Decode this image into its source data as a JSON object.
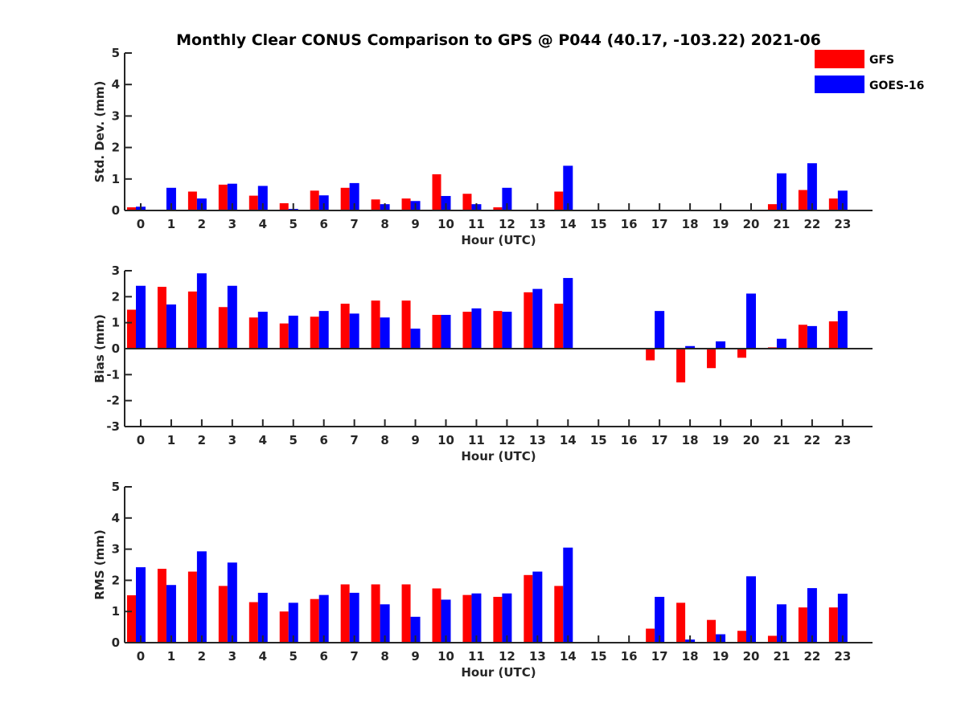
{
  "chart_data": {
    "type": "bar",
    "title": "Monthly Clear CONUS Comparison to GPS @ P044 (40.17, -103.22) 2021-06",
    "legend": {
      "placement": "top-right",
      "entries": [
        "GFS",
        "GOES-16"
      ]
    },
    "colors": {
      "GFS": "#ff0000",
      "GOES-16": "#0000ff"
    },
    "categories": [
      "0",
      "1",
      "2",
      "3",
      "4",
      "5",
      "6",
      "7",
      "8",
      "9",
      "10",
      "11",
      "12",
      "13",
      "14",
      "15",
      "16",
      "17",
      "18",
      "19",
      "20",
      "21",
      "22",
      "23"
    ],
    "panels": [
      {
        "ylabel": "Std. Dev. (mm)",
        "xlabel": "Hour (UTC)",
        "ylim": [
          0,
          5
        ],
        "yticks": [
          0,
          1,
          2,
          3,
          4,
          5
        ],
        "series": [
          {
            "name": "GFS",
            "values": [
              0.1,
              null,
              0.6,
              0.82,
              0.47,
              0.23,
              0.63,
              0.72,
              0.35,
              0.38,
              1.15,
              0.53,
              0.1,
              null,
              0.6,
              null,
              null,
              null,
              null,
              null,
              null,
              0.2,
              0.65,
              0.38
            ]
          },
          {
            "name": "GOES-16",
            "values": [
              0.12,
              0.72,
              0.38,
              0.85,
              0.78,
              0.05,
              0.48,
              0.87,
              0.2,
              0.3,
              0.46,
              0.2,
              0.72,
              null,
              1.42,
              null,
              null,
              null,
              null,
              null,
              null,
              1.18,
              1.5,
              0.63
            ]
          }
        ]
      },
      {
        "ylabel": "Bias (mm)",
        "xlabel": "Hour (UTC)",
        "ylim": [
          -3,
          3
        ],
        "yticks": [
          -3,
          -2,
          -1,
          0,
          1,
          2,
          3
        ],
        "series": [
          {
            "name": "GFS",
            "values": [
              1.5,
              2.38,
              2.2,
              1.6,
              1.2,
              0.97,
              1.23,
              1.73,
              1.85,
              1.85,
              1.3,
              1.42,
              1.45,
              2.17,
              1.73,
              null,
              null,
              -0.45,
              -1.3,
              -0.75,
              -0.35,
              0.05,
              0.92,
              1.05
            ]
          },
          {
            "name": "GOES-16",
            "values": [
              2.42,
              1.7,
              2.9,
              2.42,
              1.42,
              1.27,
              1.45,
              1.35,
              1.2,
              0.77,
              1.3,
              1.55,
              1.42,
              2.3,
              2.72,
              null,
              null,
              1.45,
              0.1,
              0.28,
              2.12,
              0.38,
              0.87,
              1.45
            ]
          }
        ]
      },
      {
        "ylabel": "RMS (mm)",
        "xlabel": "Hour (UTC)",
        "ylim": [
          0,
          5
        ],
        "yticks": [
          0,
          1,
          2,
          3,
          4,
          5
        ],
        "series": [
          {
            "name": "GFS",
            "values": [
              1.52,
              2.37,
              2.28,
              1.82,
              1.3,
              1.0,
              1.4,
              1.87,
              1.87,
              1.87,
              1.74,
              1.53,
              1.47,
              2.17,
              1.82,
              null,
              null,
              0.45,
              1.28,
              0.73,
              0.38,
              0.22,
              1.13,
              1.13
            ]
          },
          {
            "name": "GOES-16",
            "values": [
              2.42,
              1.85,
              2.93,
              2.57,
              1.6,
              1.28,
              1.53,
              1.6,
              1.23,
              0.83,
              1.38,
              1.58,
              1.58,
              2.28,
              3.05,
              null,
              null,
              1.47,
              0.1,
              0.27,
              2.13,
              1.23,
              1.75,
              1.57
            ]
          }
        ]
      }
    ]
  }
}
